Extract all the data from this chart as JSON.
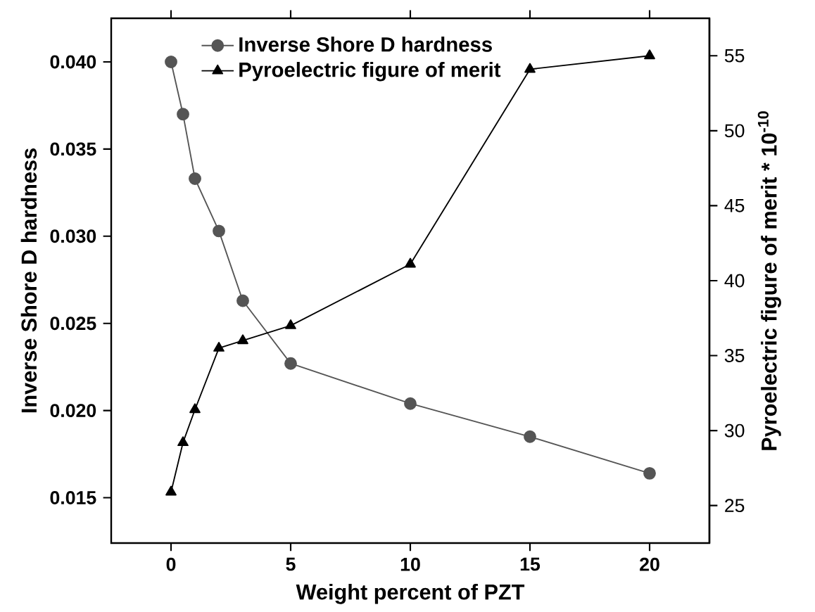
{
  "chart_data": {
    "type": "line",
    "xlabel": "Weight percent of PZT",
    "ylabel": "Inverse Shore D hardness",
    "y2label": "Pyroelectric figure of merit * 10$^{-10}$",
    "xlim": [
      -2.5,
      22.5
    ],
    "xticks": [
      0,
      5,
      10,
      15,
      20
    ],
    "ylim": [
      0.0124,
      0.0425
    ],
    "yticks": [
      {
        "value": 0.015,
        "label": "0.015"
      },
      {
        "value": 0.02,
        "label": "0.020"
      },
      {
        "value": 0.025,
        "label": "0.025"
      },
      {
        "value": 0.03,
        "label": "0.030"
      },
      {
        "value": 0.035,
        "label": "0.035"
      },
      {
        "value": 0.04,
        "label": "0.040"
      }
    ],
    "y2lim": [
      22.5,
      57.5
    ],
    "y2ticks": [
      25,
      30,
      35,
      40,
      45,
      50,
      55
    ],
    "legend": "top left",
    "grid": false,
    "line_style": "solid",
    "series": [
      {
        "name": "Inverse Shore D hardness",
        "color": "#555555",
        "marker": "circle",
        "x": [
          0,
          0.5,
          1,
          2,
          3,
          5,
          10,
          15,
          20
        ],
        "values": [
          0.04,
          0.037,
          0.0333,
          0.0303,
          0.0263,
          0.0227,
          0.0204,
          0.0185,
          0.0164
        ]
      },
      {
        "name": "Pyroelectric figure of merit",
        "color": "#000000",
        "marker": "triangle",
        "axis": "y2",
        "x": [
          0,
          0.5,
          1,
          2,
          3,
          5,
          10,
          15,
          20
        ],
        "values": [
          25.9,
          29.2,
          31.4,
          35.5,
          36.0,
          37.0,
          41.1,
          54.1,
          55.0
        ]
      }
    ]
  }
}
